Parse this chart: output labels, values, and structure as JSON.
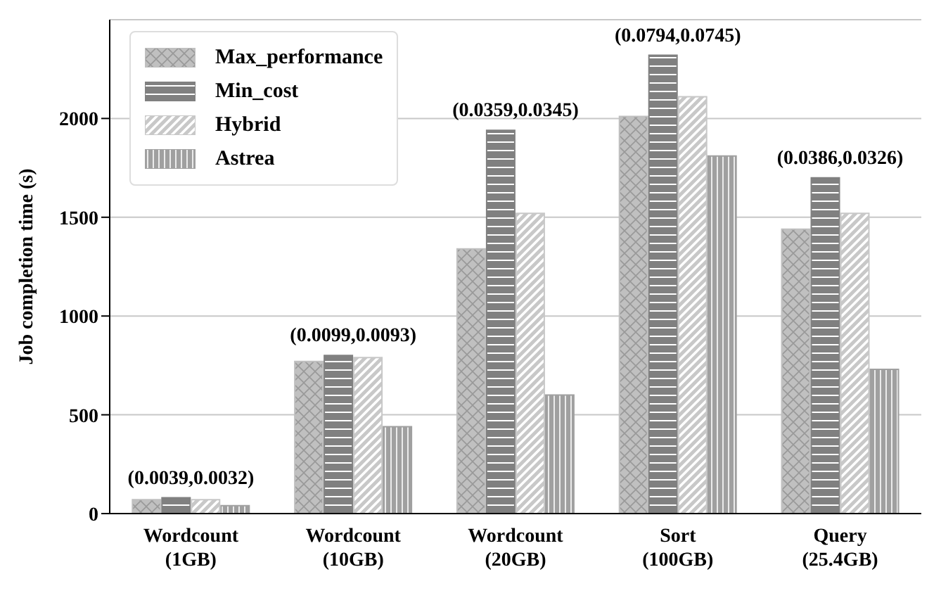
{
  "chart_data": {
    "type": "bar",
    "ylabel": "Job completion time (s)",
    "categories": [
      "Wordcount\n(1GB)",
      "Wordcount\n(10GB)",
      "Wordcount\n(20GB)",
      "Sort\n(100GB)",
      "Query\n(25.4GB)"
    ],
    "series": [
      {
        "name": "Max_performance",
        "color": "#c0c0c0",
        "values": [
          70,
          770,
          1340,
          2010,
          1440
        ]
      },
      {
        "name": "Min_cost",
        "color": "#808080",
        "values": [
          80,
          800,
          1940,
          2320,
          1700
        ]
      },
      {
        "name": "Hybrid",
        "color": "#c8c8c8",
        "values": [
          70,
          790,
          1520,
          2110,
          1520
        ]
      },
      {
        "name": "Astrea",
        "color": "#a0a0a0",
        "values": [
          40,
          440,
          600,
          1810,
          730
        ]
      }
    ],
    "ylim": [
      0,
      2500
    ],
    "yticks": [
      0,
      500,
      1000,
      1500,
      2000
    ],
    "grid": "y",
    "legend": "top left",
    "annotations": [
      "(0.0039,0.0032)",
      "(0.0099,0.0093)",
      "(0.0359,0.0345)",
      "(0.0794,0.0745)",
      "(0.0386,0.0326)"
    ]
  }
}
